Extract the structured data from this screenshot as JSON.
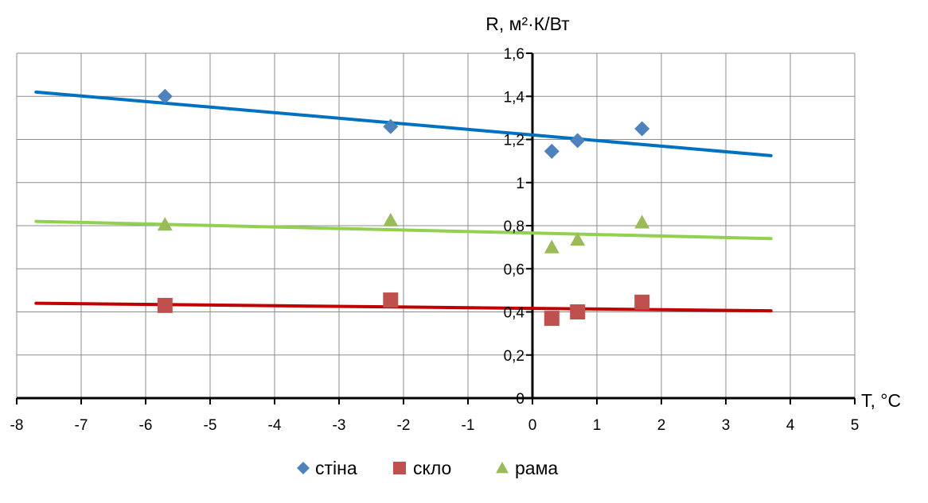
{
  "chart_data": {
    "type": "scatter",
    "xlabel": "T, °C",
    "ylabel": "R, м²·К/Вт",
    "xlim": [
      -8,
      5
    ],
    "ylim": [
      0,
      1.6
    ],
    "x_ticks": [
      -8,
      -7,
      -6,
      -5,
      -4,
      -3,
      -2,
      -1,
      0,
      1,
      2,
      3,
      4,
      5
    ],
    "x_tick_labels": [
      "-8",
      "-7",
      "-6",
      "-5",
      "-4",
      "-3",
      "-2",
      "-1",
      "0",
      "1",
      "2",
      "3",
      "4",
      "5"
    ],
    "y_ticks": [
      0,
      0.2,
      0.4,
      0.6,
      0.8,
      1,
      1.2,
      1.4,
      1.6
    ],
    "y_tick_labels": [
      "0",
      "0,2",
      "0,4",
      "0,6",
      "0,8",
      "1",
      "1,2",
      "1,4",
      "1,6"
    ],
    "grid": true,
    "legend_position": "bottom-center",
    "series": [
      {
        "name": "стіна",
        "marker": "diamond",
        "color": "#4F81BD",
        "trend_color": "#0070C0",
        "points": [
          [
            -5.7,
            1.4
          ],
          [
            -2.2,
            1.26
          ],
          [
            0.3,
            1.145
          ],
          [
            0.7,
            1.195
          ],
          [
            1.7,
            1.25
          ]
        ],
        "trendline": [
          [
            -7.7,
            1.42
          ],
          [
            3.7,
            1.125
          ]
        ]
      },
      {
        "name": "скло",
        "marker": "square",
        "color": "#C0504D",
        "trend_color": "#C00000",
        "points": [
          [
            -5.7,
            0.43
          ],
          [
            -2.2,
            0.455
          ],
          [
            0.3,
            0.37
          ],
          [
            0.7,
            0.4
          ],
          [
            1.7,
            0.445
          ]
        ],
        "trendline": [
          [
            -7.7,
            0.44
          ],
          [
            3.7,
            0.405
          ]
        ]
      },
      {
        "name": "рама",
        "marker": "triangle",
        "color": "#9BBB59",
        "trend_color": "#92D050",
        "points": [
          [
            -5.7,
            0.805
          ],
          [
            -2.2,
            0.825
          ],
          [
            0.3,
            0.7
          ],
          [
            0.7,
            0.735
          ],
          [
            1.7,
            0.815
          ]
        ],
        "trendline": [
          [
            -7.7,
            0.82
          ],
          [
            3.7,
            0.74
          ]
        ]
      }
    ]
  }
}
